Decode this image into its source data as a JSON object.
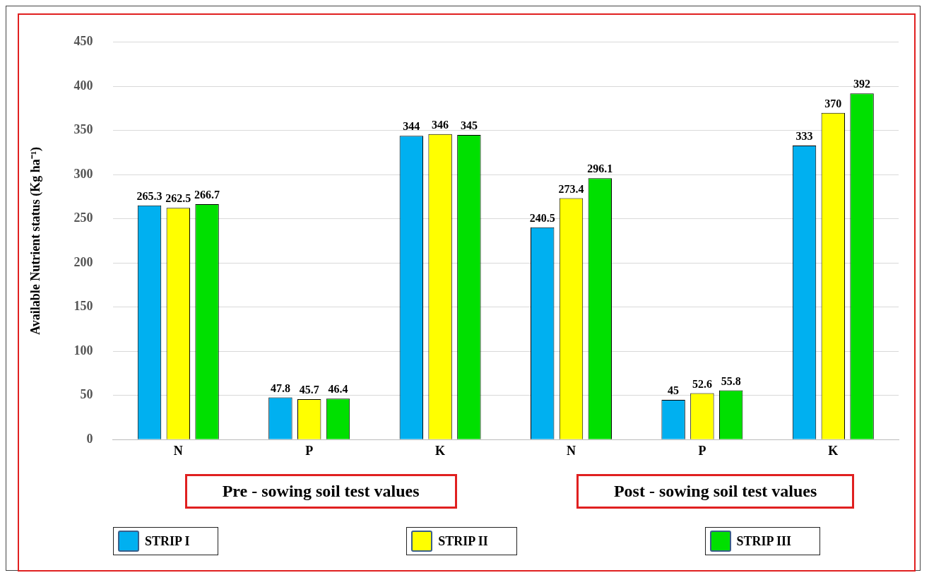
{
  "chart_data": {
    "type": "bar",
    "ylabel": "Available Nutrient status (Kg ha⁻¹)",
    "categories": [
      "N",
      "P",
      "K",
      "N",
      "P",
      "K"
    ],
    "series": [
      {
        "name": "STRIP I",
        "color": "#00b0f0",
        "values": [
          265.3,
          47.8,
          344,
          240.5,
          45,
          333
        ]
      },
      {
        "name": "STRIP II",
        "color": "#ffff00",
        "values": [
          262.5,
          45.7,
          346,
          273.4,
          52.6,
          370
        ]
      },
      {
        "name": "STRIP III",
        "color": "#00e000",
        "values": [
          266.7,
          46.4,
          345,
          296.1,
          55.8,
          392
        ]
      }
    ],
    "ylim": [
      0,
      450
    ],
    "yticks": [
      0,
      50,
      100,
      150,
      200,
      250,
      300,
      350,
      400,
      450
    ],
    "grid": "y",
    "legend": "bottom",
    "data_labels": true,
    "annotations": [
      "Pre - sowing soil test values",
      "Post - sowing soil test values"
    ]
  }
}
